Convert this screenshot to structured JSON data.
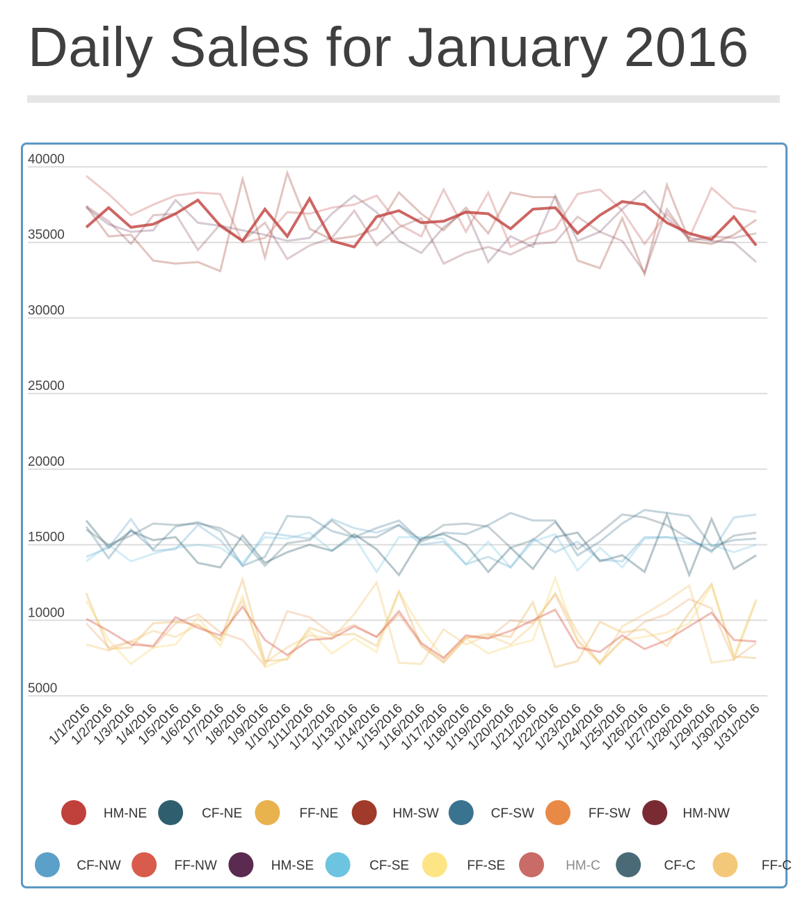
{
  "title": "Daily Sales for January 2016",
  "chart_data": {
    "type": "line",
    "title": "Daily Sales for January 2016",
    "xlabel": "",
    "ylabel": "",
    "ylim": [
      5000,
      40000
    ],
    "yticks": [
      40000,
      35000,
      30000,
      25000,
      20000,
      15000,
      10000,
      5000
    ],
    "grid": true,
    "legend_position": "bottom",
    "categories": [
      "1/1/2016",
      "1/2/2016",
      "1/3/2016",
      "1/4/2016",
      "1/5/2016",
      "1/6/2016",
      "1/7/2016",
      "1/8/2016",
      "1/9/2016",
      "1/10/2016",
      "1/11/2016",
      "1/12/2016",
      "1/13/2016",
      "1/14/2016",
      "1/15/2016",
      "1/16/2016",
      "1/17/2016",
      "1/18/2016",
      "1/19/2016",
      "1/20/2016",
      "1/21/2016",
      "1/22/2016",
      "1/23/2016",
      "1/24/2016",
      "1/25/2016",
      "1/26/2016",
      "1/27/2016",
      "1/28/2016",
      "1/29/2016",
      "1/30/2016",
      "1/31/2016"
    ],
    "series": [
      {
        "name": "HM-NE",
        "color": "#c0403c",
        "opacity": 0.8,
        "width": 4,
        "values": [
          36000,
          37300,
          36000,
          36200,
          36900,
          37800,
          36100,
          35100,
          37200,
          35400,
          37900,
          35100,
          34700,
          36700,
          37100,
          36300,
          36400,
          37000,
          36900,
          35900,
          37200,
          37300,
          35600,
          36800,
          37700,
          37500,
          36300,
          35600,
          35200,
          36700,
          34800
        ]
      },
      {
        "name": "CF-NE",
        "color": "#2f5f6e",
        "opacity": 0.35,
        "width": 3,
        "values": [
          16600,
          14800,
          15900,
          15300,
          15500,
          13800,
          13500,
          15600,
          13800,
          14500,
          15000,
          14600,
          15700,
          14700,
          13000,
          15400,
          15700,
          15000,
          13200,
          14800,
          13400,
          15500,
          15800,
          13900,
          14300,
          13200,
          17000,
          13000,
          16700,
          13400,
          14300
        ]
      },
      {
        "name": "FF-NE",
        "color": "#e8b24e",
        "opacity": 0.35,
        "width": 3,
        "values": [
          11800,
          8100,
          8200,
          9800,
          9900,
          9700,
          8700,
          12700,
          7300,
          7400,
          9500,
          9000,
          9100,
          8300,
          11900,
          8300,
          7200,
          8800,
          9100,
          8900,
          11200,
          6900,
          7300,
          9900,
          9200,
          9400,
          8300,
          10500,
          12400,
          7600,
          7500
        ]
      },
      {
        "name": "HM-SW",
        "color": "#a03a2a",
        "opacity": 0.3,
        "width": 3,
        "values": [
          37400,
          35400,
          35500,
          33800,
          33600,
          33700,
          33100,
          39200,
          34000,
          39600,
          35900,
          35200,
          35400,
          35900,
          38300,
          36900,
          35800,
          37300,
          35600,
          38300,
          38000,
          38000,
          33800,
          33300,
          36600,
          32900,
          38800,
          35100,
          34900,
          35500,
          36500
        ]
      },
      {
        "name": "CF-SW",
        "color": "#3a7390",
        "opacity": 0.3,
        "width": 3,
        "values": [
          16200,
          14100,
          16000,
          14700,
          16200,
          16500,
          15900,
          13600,
          14200,
          16900,
          16800,
          15900,
          15500,
          16100,
          16600,
          15200,
          15800,
          15700,
          16300,
          17100,
          16600,
          16600,
          14300,
          15200,
          16400,
          17300,
          17100,
          16900,
          14900,
          15300,
          15400
        ]
      },
      {
        "name": "FF-SW",
        "color": "#e88a45",
        "opacity": 0.25,
        "width": 3,
        "values": [
          9800,
          8200,
          8600,
          8200,
          9800,
          10400,
          9200,
          8700,
          7000,
          10600,
          10200,
          9100,
          9700,
          8900,
          10400,
          8400,
          7300,
          8900,
          8800,
          10000,
          9800,
          11700,
          8700,
          7200,
          8700,
          9900,
          10400,
          11400,
          10800,
          7400,
          8500
        ]
      },
      {
        "name": "HM-NW",
        "color": "#7a2a32",
        "opacity": 0.25,
        "width": 3,
        "values": [
          37400,
          36400,
          34900,
          36800,
          36900,
          34500,
          36200,
          35100,
          36300,
          33900,
          34800,
          35300,
          37100,
          34800,
          36000,
          36600,
          33600,
          34300,
          34700,
          34200,
          34900,
          35000,
          36700,
          35700,
          35100,
          33000,
          37200,
          35100,
          35400,
          35300,
          35600
        ]
      },
      {
        "name": "CF-NW",
        "color": "#5aa0c8",
        "opacity": 0.3,
        "width": 3,
        "values": [
          14200,
          14800,
          16700,
          14600,
          14700,
          16300,
          15300,
          13600,
          15800,
          15600,
          15400,
          16700,
          16100,
          15800,
          16300,
          15000,
          15200,
          13700,
          14200,
          13500,
          15400,
          14500,
          15200,
          14000,
          13900,
          15500,
          15500,
          15400,
          14500,
          16800,
          17000
        ]
      },
      {
        "name": "FF-NW",
        "color": "#d95b4b",
        "opacity": 0.4,
        "width": 3,
        "values": [
          10100,
          9300,
          8400,
          8300,
          10200,
          9500,
          9000,
          10900,
          8700,
          7700,
          8700,
          8800,
          9600,
          8900,
          10600,
          8500,
          7500,
          9000,
          8800,
          9300,
          10000,
          10700,
          8200,
          7900,
          9000,
          8100,
          8700,
          9600,
          10500,
          8700,
          8600
        ]
      },
      {
        "name": "HM-SE",
        "color": "#5a2a50",
        "opacity": 0.25,
        "width": 3,
        "values": [
          37300,
          36200,
          35700,
          35800,
          37800,
          36300,
          36100,
          35800,
          35500,
          35100,
          35300,
          36900,
          38100,
          37000,
          35100,
          34300,
          36000,
          37100,
          33700,
          35400,
          34700,
          38100,
          35100,
          35700,
          37200,
          38400,
          36600,
          35300,
          35100,
          35000,
          33700
        ]
      },
      {
        "name": "CF-SE",
        "color": "#6cc4e0",
        "opacity": 0.3,
        "width": 3,
        "values": [
          13900,
          15000,
          13900,
          14400,
          14800,
          15000,
          14800,
          13800,
          15500,
          15400,
          15800,
          14600,
          15500,
          13200,
          15500,
          15500,
          15400,
          13700,
          15200,
          13500,
          15200,
          15700,
          13300,
          14800,
          13500,
          15400,
          15500,
          15100,
          15000,
          14500,
          15000
        ]
      },
      {
        "name": "FF-SE",
        "color": "#f5d76e",
        "opacity": 0.35,
        "width": 3,
        "values": [
          11300,
          8700,
          7100,
          8200,
          8400,
          10200,
          8300,
          11600,
          6900,
          7500,
          9300,
          7800,
          8800,
          7900,
          11900,
          9400,
          7500,
          8800,
          7800,
          8300,
          8700,
          12800,
          8600,
          7100,
          8700,
          8900,
          9200,
          9800,
          12300,
          7600,
          11400
        ]
      },
      {
        "name": "HM-C",
        "color": "#c96b66",
        "opacity": 0.35,
        "width": 3,
        "values": [
          39400,
          38200,
          36800,
          37500,
          38100,
          38300,
          38200,
          35000,
          35300,
          37000,
          36900,
          37300,
          37500,
          38100,
          36200,
          35400,
          38500,
          35700,
          38300,
          34700,
          35400,
          35900,
          38200,
          38500,
          37100,
          34900,
          36900,
          35300,
          38600,
          37300,
          37000
        ]
      },
      {
        "name": "CF-C",
        "color": "#4a6a78",
        "opacity": 0.3,
        "width": 3,
        "values": [
          16000,
          15000,
          15600,
          16400,
          16300,
          16400,
          16100,
          15300,
          13600,
          15100,
          15300,
          16600,
          15500,
          15500,
          16300,
          15300,
          16300,
          16400,
          16200,
          14800,
          15300,
          16500,
          14700,
          15800,
          17000,
          16800,
          16300,
          15400,
          14600,
          15600,
          15800
        ]
      },
      {
        "name": "FF-C",
        "color": "#f2c36c",
        "opacity": 0.35,
        "width": 3,
        "values": [
          8400,
          8000,
          8600,
          9300,
          8900,
          9700,
          8700,
          11300,
          7200,
          8200,
          9000,
          8800,
          10400,
          12500,
          7200,
          7100,
          9400,
          8400,
          9000,
          8400,
          9700,
          11800,
          9200,
          7100,
          9600,
          10400,
          11300,
          12300,
          7200,
          7400,
          11300
        ]
      }
    ]
  },
  "legend_row1": [
    {
      "name": "HM-NE",
      "color": "#c0403c"
    },
    {
      "name": "CF-NE",
      "color": "#2f5f6e"
    },
    {
      "name": "FF-NE",
      "color": "#e8b24e"
    },
    {
      "name": "HM-SW",
      "color": "#a03a2a"
    },
    {
      "name": "CF-SW",
      "color": "#3a7390"
    },
    {
      "name": "FF-SW",
      "color": "#e88a45"
    },
    {
      "name": "HM-NW",
      "color": "#7a2a32"
    }
  ],
  "legend_row2": [
    {
      "name": "CF-NW",
      "color": "#5aa0c8"
    },
    {
      "name": "FF-NW",
      "color": "#d95b4b"
    },
    {
      "name": "HM-SE",
      "color": "#5a2a50"
    },
    {
      "name": "CF-SE",
      "color": "#6cc4e0"
    },
    {
      "name": "FF-SE",
      "color": "#fde585"
    },
    {
      "name": "HM-C",
      "color": "#c96b66"
    },
    {
      "name": "CF-C",
      "color": "#4a6a78"
    },
    {
      "name": "FF-C",
      "color": "#f4c879"
    }
  ],
  "legend_dimmed": [
    "HM-C"
  ]
}
